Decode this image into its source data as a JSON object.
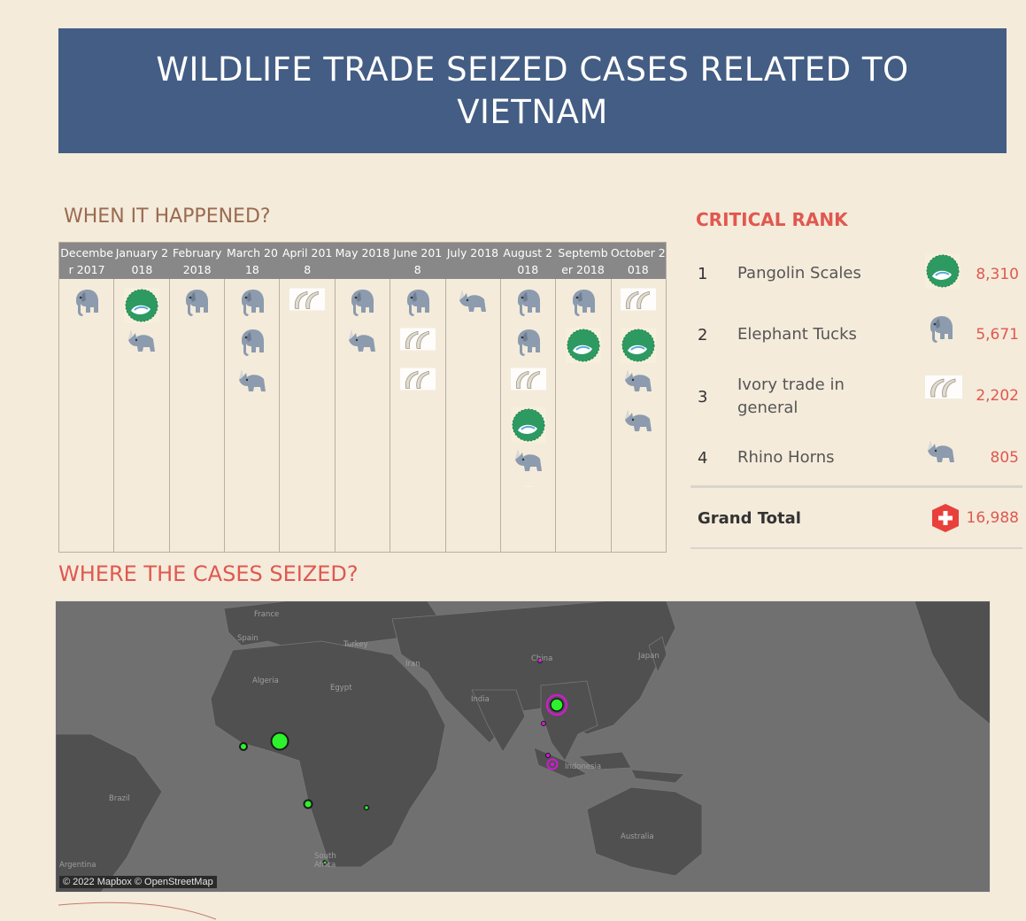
{
  "title": "WILDLIFE TRADE SEIZED CASES RELATED TO VIETNAM",
  "when_heading": "WHEN IT HAPPENED?",
  "where_heading": "WHERE THE CASES SEIZED?",
  "rank_heading": "CRITICAL RANK",
  "timeline": {
    "months": [
      {
        "label": "December 2017",
        "icons": [
          "elephant-icon"
        ]
      },
      {
        "label": "January 2018",
        "icons": [
          "pangolin-icon",
          "rhino-icon"
        ]
      },
      {
        "label": "February 2018",
        "icons": [
          "elephant-icon"
        ]
      },
      {
        "label": "March 2018",
        "icons": [
          "elephant-icon",
          "elephant-icon",
          "rhino-icon"
        ]
      },
      {
        "label": "April 2018",
        "icons": [
          "ivory-icon"
        ]
      },
      {
        "label": "May 2018",
        "icons": [
          "elephant-icon",
          "rhino-icon"
        ]
      },
      {
        "label": "June 2018",
        "icons": [
          "elephant-icon",
          "ivory-icon",
          "ivory-icon"
        ]
      },
      {
        "label": "July 2018",
        "icons": [
          "rhino-icon"
        ]
      },
      {
        "label": "August 2018",
        "icons": [
          "elephant-icon",
          "elephant-icon",
          "ivory-icon",
          "pangolin-icon",
          "rhino-icon"
        ],
        "more": "..."
      },
      {
        "label": "September 2018",
        "icons": [
          "elephant-icon",
          "pangolin-icon"
        ]
      },
      {
        "label": "October 2018",
        "icons": [
          "ivory-icon",
          "pangolin-icon",
          "rhino-icon",
          "rhino-icon"
        ]
      }
    ]
  },
  "rank": {
    "items": [
      {
        "rank": "1",
        "name": "Pangolin Scales",
        "icon": "pangolin-icon",
        "value": "8,310"
      },
      {
        "rank": "2",
        "name": "Elephant Tucks",
        "icon": "elephant-icon",
        "value": "5,671"
      },
      {
        "rank": "3",
        "name": "Ivory trade in general",
        "icon": "ivory-icon",
        "value": "2,202"
      },
      {
        "rank": "4",
        "name": "Rhino Horns",
        "icon": "rhino-icon",
        "value": "805"
      }
    ],
    "grand_total_label": "Grand Total",
    "grand_total_value": "16,988",
    "grand_total_icon": "plus-icon"
  },
  "map": {
    "labels": [
      "France",
      "Spain",
      "Turkey",
      "Iran",
      "China",
      "Japan",
      "Algeria",
      "Egypt",
      "India",
      "Indonesia",
      "Brazil",
      "Australia",
      "South Africa",
      "Argentina"
    ],
    "attribution": "© 2022 Mapbox © OpenStreetMap"
  },
  "colors": {
    "banner": "#435d84",
    "accent": "#e0584f",
    "when_heading": "#9a6b50",
    "marker_green": "#2cf22c",
    "marker_magenta": "#d01ad0"
  }
}
